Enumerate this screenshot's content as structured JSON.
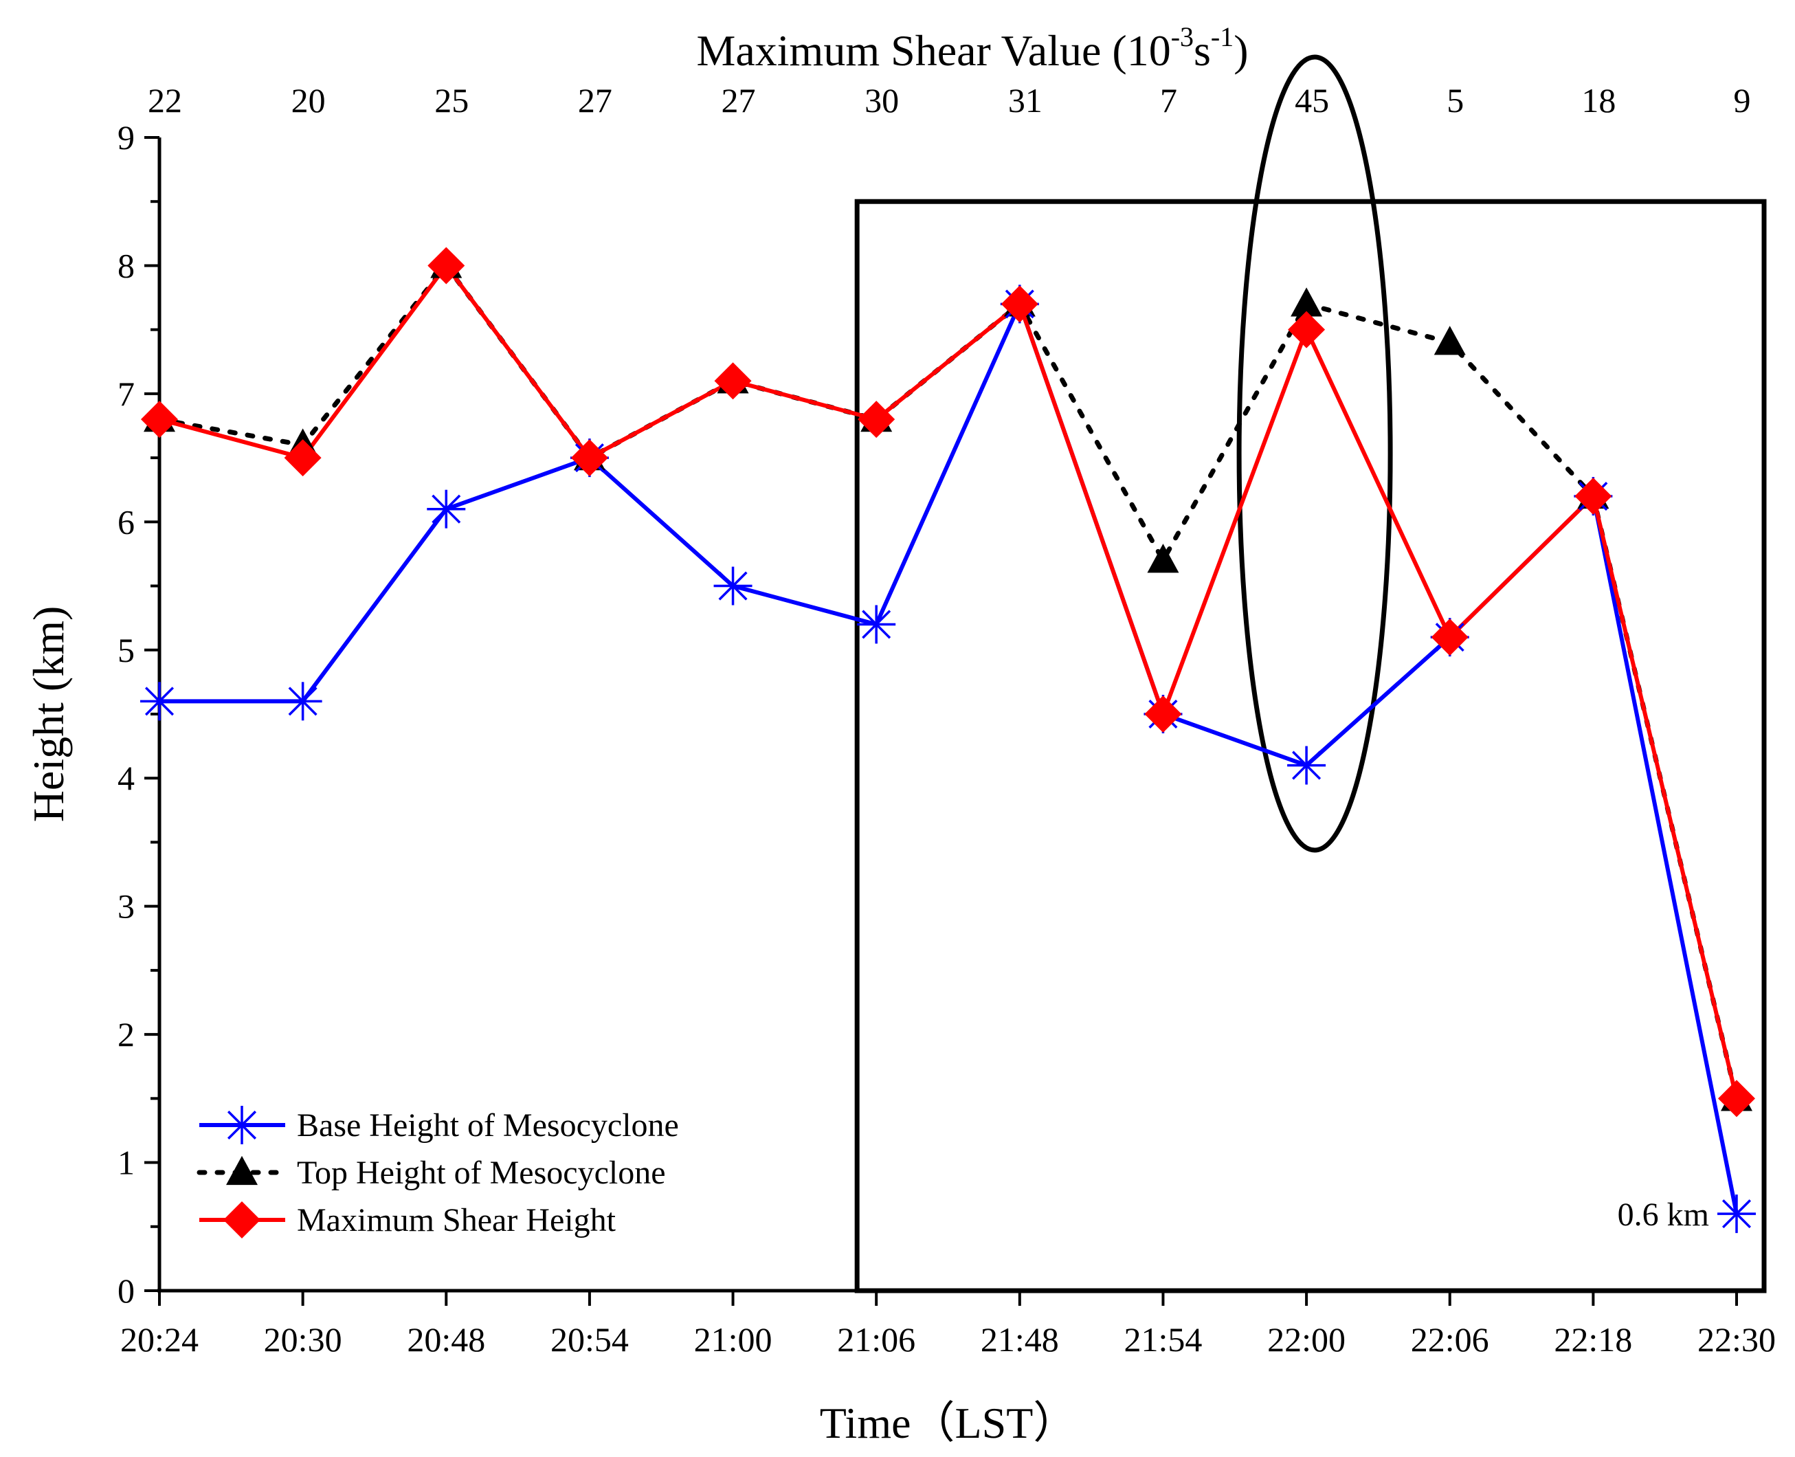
{
  "chart_data": {
    "type": "line",
    "title": "Maximum Shear Value (10-3s-1)",
    "title_parts": {
      "main": "Maximum Shear Value (10",
      "sup1": "-3",
      "mid": "s",
      "sup2": "-1",
      "end": ")"
    },
    "xlabel": "Time（LST）",
    "ylabel": "Height (km)",
    "ylim": [
      0,
      9
    ],
    "yticks": [
      "0",
      "1",
      "2",
      "3",
      "4",
      "5",
      "6",
      "7",
      "8",
      "9"
    ],
    "categories": [
      "20:24",
      "20:30",
      "20:48",
      "20:54",
      "21:00",
      "21:06",
      "21:48",
      "21:54",
      "22:00",
      "22:06",
      "22:18",
      "22:30"
    ],
    "top_axis_values": [
      "22",
      "20",
      "25",
      "27",
      "27",
      "30",
      "31",
      "7",
      "45",
      "5",
      "18",
      "9"
    ],
    "series": [
      {
        "name": "Base Height of Mesocyclone",
        "color": "#0000ff",
        "line_style": "solid",
        "marker": "asterisk",
        "values": [
          4.6,
          4.6,
          6.1,
          6.5,
          5.5,
          5.2,
          7.7,
          4.5,
          4.1,
          5.1,
          6.2,
          0.6
        ]
      },
      {
        "name": "Top Height of Mesocyclone",
        "color": "#000000",
        "line_style": "dotted",
        "marker": "triangle",
        "values": [
          6.8,
          6.6,
          8.0,
          6.5,
          7.1,
          6.8,
          7.7,
          5.7,
          7.7,
          7.4,
          6.2,
          1.5
        ]
      },
      {
        "name": "Maximum Shear Height",
        "color": "#ff0000",
        "line_style": "solid",
        "marker": "diamond",
        "values": [
          6.8,
          6.5,
          8.0,
          6.5,
          7.1,
          6.8,
          7.7,
          4.5,
          7.5,
          5.1,
          6.2,
          1.5
        ]
      }
    ],
    "annotations": [
      {
        "text": "0.6 km",
        "at_category": "22:30",
        "series": "Base Height of Mesocyclone"
      }
    ],
    "highlight_box": {
      "from_category": "21:06",
      "to_category": "22:30",
      "y_range": [
        0,
        8.5
      ]
    },
    "highlight_ellipse": {
      "at_category": "22:00"
    },
    "legend_position": "bottom-left",
    "grid": false
  }
}
